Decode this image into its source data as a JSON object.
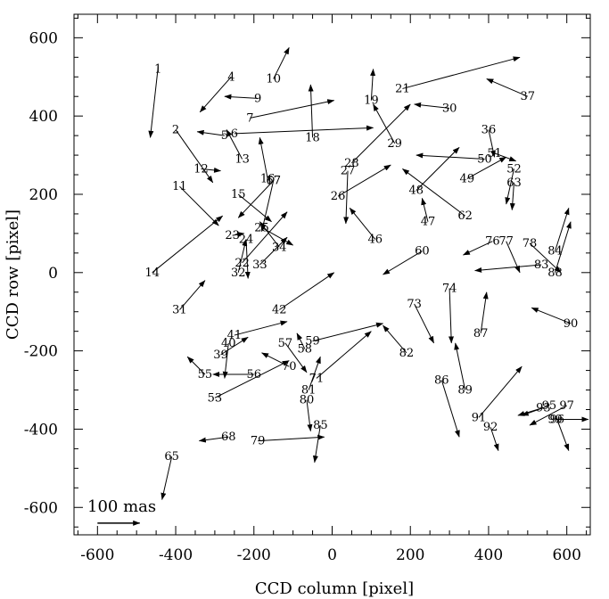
{
  "chart_data": {
    "type": "scatter",
    "title": "",
    "xlabel": "CCD column [pixel]",
    "ylabel": "CCD row [pixel]",
    "xlim": [
      -660,
      660
    ],
    "ylim": [
      -670,
      660
    ],
    "xticks": [
      -600,
      -400,
      -200,
      0,
      200,
      400,
      600
    ],
    "yticks": [
      -600,
      -400,
      -200,
      0,
      200,
      400,
      600
    ],
    "grid": false,
    "scale_label": "100 mas",
    "scale_arrow": {
      "x": -600,
      "y": -640,
      "dx": 108,
      "dy": 0
    },
    "vectors": [
      {
        "id": "1",
        "x": -445,
        "y": 525,
        "dx": -20,
        "dy": -180,
        "lx": -445,
        "ly": 520
      },
      {
        "id": "2",
        "x": -400,
        "y": 365,
        "dx": 95,
        "dy": -135,
        "lx": -400,
        "ly": 365
      },
      {
        "id": "4",
        "x": -258,
        "y": 500,
        "dx": -80,
        "dy": -90,
        "lx": -258,
        "ly": 500
      },
      {
        "id": "5",
        "x": -275,
        "y": 350,
        "dx": -70,
        "dy": 10,
        "lx": -275,
        "ly": 350
      },
      {
        "id": "6",
        "x": -250,
        "y": 355,
        "dx": 355,
        "dy": 15,
        "lx": -250,
        "ly": 355
      },
      {
        "id": "7",
        "x": -210,
        "y": 395,
        "dx": 215,
        "dy": 45,
        "lx": -210,
        "ly": 395
      },
      {
        "id": "9",
        "x": -190,
        "y": 445,
        "dx": -85,
        "dy": 5,
        "lx": -190,
        "ly": 445
      },
      {
        "id": "10",
        "x": -150,
        "y": 495,
        "dx": 40,
        "dy": 80,
        "lx": -150,
        "ly": 495
      },
      {
        "id": "11",
        "x": -390,
        "y": 220,
        "dx": 100,
        "dy": -100,
        "lx": -390,
        "ly": 220
      },
      {
        "id": "12",
        "x": -335,
        "y": 265,
        "dx": 50,
        "dy": -5,
        "lx": -335,
        "ly": 265
      },
      {
        "id": "13",
        "x": -230,
        "y": 290,
        "dx": -40,
        "dy": 75,
        "lx": -230,
        "ly": 290
      },
      {
        "id": "14",
        "x": -460,
        "y": 0,
        "dx": 180,
        "dy": 145,
        "lx": -460,
        "ly": 0
      },
      {
        "id": "15",
        "x": -240,
        "y": 200,
        "dx": 85,
        "dy": -70,
        "lx": -240,
        "ly": 200
      },
      {
        "id": "16",
        "x": -165,
        "y": 240,
        "dx": -20,
        "dy": 105,
        "lx": -165,
        "ly": 240
      },
      {
        "id": "17",
        "x": -150,
        "y": 235,
        "dx": -90,
        "dy": -95,
        "lx": -150,
        "ly": 235
      },
      {
        "id": "18",
        "x": -50,
        "y": 345,
        "dx": -5,
        "dy": 135,
        "lx": -50,
        "ly": 345
      },
      {
        "id": "19",
        "x": 100,
        "y": 440,
        "dx": 5,
        "dy": 80,
        "lx": 100,
        "ly": 440
      },
      {
        "id": "21",
        "x": 180,
        "y": 470,
        "dx": 300,
        "dy": 80,
        "lx": 180,
        "ly": 470
      },
      {
        "id": "22",
        "x": -230,
        "y": 25,
        "dx": 115,
        "dy": 130,
        "lx": -230,
        "ly": 25
      },
      {
        "id": "23",
        "x": -255,
        "y": 95,
        "dx": 30,
        "dy": 5,
        "lx": -255,
        "ly": 95
      },
      {
        "id": "24",
        "x": -220,
        "y": 85,
        "dx": 5,
        "dy": -100,
        "lx": -220,
        "ly": 85
      },
      {
        "id": "25",
        "x": -180,
        "y": 115,
        "dx": 80,
        "dy": -45,
        "lx": -180,
        "ly": 115
      },
      {
        "id": "26",
        "x": 15,
        "y": 195,
        "dx": 135,
        "dy": 80,
        "lx": 15,
        "ly": 195
      },
      {
        "id": "27",
        "x": 40,
        "y": 260,
        "dx": -5,
        "dy": -135,
        "lx": 40,
        "ly": 260
      },
      {
        "id": "28",
        "x": 50,
        "y": 280,
        "dx": 150,
        "dy": 150,
        "lx": 50,
        "ly": 280
      },
      {
        "id": "29",
        "x": 160,
        "y": 330,
        "dx": -55,
        "dy": 100,
        "lx": 160,
        "ly": 330
      },
      {
        "id": "30",
        "x": 300,
        "y": 420,
        "dx": -90,
        "dy": 10,
        "lx": 300,
        "ly": 420
      },
      {
        "id": "31",
        "x": -390,
        "y": -95,
        "dx": 65,
        "dy": 75,
        "lx": -390,
        "ly": -95
      },
      {
        "id": "32",
        "x": -240,
        "y": 0,
        "dx": 20,
        "dy": 85,
        "lx": -240,
        "ly": 0
      },
      {
        "id": "33",
        "x": -185,
        "y": 20,
        "dx": 70,
        "dy": 70,
        "lx": -185,
        "ly": 20
      },
      {
        "id": "34",
        "x": -135,
        "y": 65,
        "dx": -50,
        "dy": 65,
        "lx": -135,
        "ly": 65
      },
      {
        "id": "36",
        "x": 400,
        "y": 365,
        "dx": 15,
        "dy": -70,
        "lx": 400,
        "ly": 365
      },
      {
        "id": "37",
        "x": 500,
        "y": 450,
        "dx": -105,
        "dy": 45,
        "lx": 500,
        "ly": 450
      },
      {
        "id": "39",
        "x": -285,
        "y": -210,
        "dx": 70,
        "dy": 45,
        "lx": -285,
        "ly": -210
      },
      {
        "id": "40",
        "x": -265,
        "y": -180,
        "dx": -10,
        "dy": -90,
        "lx": -265,
        "ly": -180
      },
      {
        "id": "41",
        "x": -250,
        "y": -160,
        "dx": 135,
        "dy": 35,
        "lx": -250,
        "ly": -160
      },
      {
        "id": "42",
        "x": -135,
        "y": -95,
        "dx": 140,
        "dy": 95,
        "lx": -135,
        "ly": -95
      },
      {
        "id": "46",
        "x": 110,
        "y": 85,
        "dx": -65,
        "dy": 80,
        "lx": 110,
        "ly": 85
      },
      {
        "id": "47",
        "x": 245,
        "y": 130,
        "dx": -15,
        "dy": 60,
        "lx": 245,
        "ly": 130
      },
      {
        "id": "48",
        "x": 215,
        "y": 210,
        "dx": 110,
        "dy": 110,
        "lx": 215,
        "ly": 210
      },
      {
        "id": "49",
        "x": 345,
        "y": 240,
        "dx": 100,
        "dy": 55,
        "lx": 345,
        "ly": 240
      },
      {
        "id": "50",
        "x": 390,
        "y": 290,
        "dx": -175,
        "dy": 10,
        "lx": 390,
        "ly": 290
      },
      {
        "id": "51",
        "x": 415,
        "y": 305,
        "dx": 55,
        "dy": -20,
        "lx": 415,
        "ly": 305
      },
      {
        "id": "52",
        "x": 465,
        "y": 265,
        "dx": -20,
        "dy": -90,
        "lx": 465,
        "ly": 265
      },
      {
        "id": "53",
        "x": -300,
        "y": -320,
        "dx": 190,
        "dy": 95,
        "lx": -300,
        "ly": -320
      },
      {
        "id": "55",
        "x": -325,
        "y": -260,
        "dx": -45,
        "dy": 45,
        "lx": -325,
        "ly": -260
      },
      {
        "id": "56",
        "x": -200,
        "y": -260,
        "dx": -105,
        "dy": 0,
        "lx": -200,
        "ly": -260
      },
      {
        "id": "57",
        "x": -120,
        "y": -180,
        "dx": 55,
        "dy": -75,
        "lx": -120,
        "ly": -180
      },
      {
        "id": "58",
        "x": -70,
        "y": -195,
        "dx": -20,
        "dy": 40,
        "lx": -70,
        "ly": -195
      },
      {
        "id": "59",
        "x": -50,
        "y": -175,
        "dx": 180,
        "dy": 45,
        "lx": -50,
        "ly": -175
      },
      {
        "id": "60",
        "x": 230,
        "y": 55,
        "dx": -100,
        "dy": -60,
        "lx": 230,
        "ly": 55
      },
      {
        "id": "62",
        "x": 340,
        "y": 145,
        "dx": -160,
        "dy": 120,
        "lx": 340,
        "ly": 145
      },
      {
        "id": "63",
        "x": 465,
        "y": 230,
        "dx": -5,
        "dy": -70,
        "lx": 465,
        "ly": 230
      },
      {
        "id": "65",
        "x": -410,
        "y": -470,
        "dx": -25,
        "dy": -110,
        "lx": -410,
        "ly": -470
      },
      {
        "id": "67",
        "x": -150,
        "y": 235,
        "dx": -30,
        "dy": -130,
        "lx": -150,
        "ly": 235
      },
      {
        "id": "68",
        "x": -265,
        "y": -420,
        "dx": -75,
        "dy": -10,
        "lx": -265,
        "ly": -420
      },
      {
        "id": "70",
        "x": -110,
        "y": -240,
        "dx": -70,
        "dy": 35,
        "lx": -110,
        "ly": -240
      },
      {
        "id": "71",
        "x": -40,
        "y": -270,
        "dx": 140,
        "dy": 120,
        "lx": -40,
        "ly": -270
      },
      {
        "id": "73",
        "x": 210,
        "y": -80,
        "dx": 50,
        "dy": -100,
        "lx": 210,
        "ly": -80
      },
      {
        "id": "74",
        "x": 300,
        "y": -40,
        "dx": 5,
        "dy": -140,
        "lx": 300,
        "ly": -40
      },
      {
        "id": "76",
        "x": 410,
        "y": 80,
        "dx": -75,
        "dy": -35,
        "lx": 410,
        "ly": 80
      },
      {
        "id": "77",
        "x": 445,
        "y": 80,
        "dx": 35,
        "dy": -80,
        "lx": 445,
        "ly": 80
      },
      {
        "id": "78",
        "x": 505,
        "y": 75,
        "dx": 80,
        "dy": -75,
        "lx": 505,
        "ly": 75
      },
      {
        "id": "79",
        "x": -190,
        "y": -430,
        "dx": 170,
        "dy": 10,
        "lx": -190,
        "ly": -430
      },
      {
        "id": "80",
        "x": -65,
        "y": -325,
        "dx": 10,
        "dy": -80,
        "lx": -65,
        "ly": -325
      },
      {
        "id": "81",
        "x": -60,
        "y": -300,
        "dx": 30,
        "dy": 85,
        "lx": -60,
        "ly": -300
      },
      {
        "id": "82",
        "x": 190,
        "y": -205,
        "dx": -60,
        "dy": 70,
        "lx": 190,
        "ly": -205
      },
      {
        "id": "83",
        "x": 535,
        "y": 20,
        "dx": -170,
        "dy": -15,
        "lx": 535,
        "ly": 20
      },
      {
        "id": "84",
        "x": 570,
        "y": 55,
        "dx": 35,
        "dy": 110,
        "lx": 570,
        "ly": 55
      },
      {
        "id": "85",
        "x": -30,
        "y": -390,
        "dx": -15,
        "dy": -95,
        "lx": -30,
        "ly": -390
      },
      {
        "id": "86",
        "x": 280,
        "y": -275,
        "dx": 45,
        "dy": -145,
        "lx": 280,
        "ly": -275
      },
      {
        "id": "87",
        "x": 380,
        "y": -155,
        "dx": 15,
        "dy": 105,
        "lx": 380,
        "ly": -155
      },
      {
        "id": "88",
        "x": 570,
        "y": 0,
        "dx": 40,
        "dy": 130,
        "lx": 570,
        "ly": 0
      },
      {
        "id": "89",
        "x": 340,
        "y": -300,
        "dx": -25,
        "dy": 120,
        "lx": 340,
        "ly": -300
      },
      {
        "id": "90",
        "x": 610,
        "y": -130,
        "dx": -100,
        "dy": 40,
        "lx": 610,
        "ly": -130
      },
      {
        "id": "91",
        "x": 375,
        "y": -370,
        "dx": 110,
        "dy": 130,
        "lx": 375,
        "ly": -370
      },
      {
        "id": "92",
        "x": 405,
        "y": -395,
        "dx": 20,
        "dy": -60,
        "lx": 405,
        "ly": -395
      },
      {
        "id": "93",
        "x": 540,
        "y": -345,
        "dx": -65,
        "dy": -20,
        "lx": 540,
        "ly": -345
      },
      {
        "id": "95",
        "x": 555,
        "y": -340,
        "dx": -70,
        "dy": -25,
        "lx": 555,
        "ly": -340
      },
      {
        "id": "96",
        "x": 575,
        "y": -375,
        "dx": 30,
        "dy": -80,
        "lx": 575,
        "ly": -375
      },
      {
        "id": "97",
        "x": 600,
        "y": -340,
        "dx": -95,
        "dy": -50,
        "lx": 600,
        "ly": -340
      },
      {
        "id": "99",
        "x": 570,
        "y": -375,
        "dx": 85,
        "dy": 0,
        "lx": 570,
        "ly": -375
      }
    ]
  }
}
